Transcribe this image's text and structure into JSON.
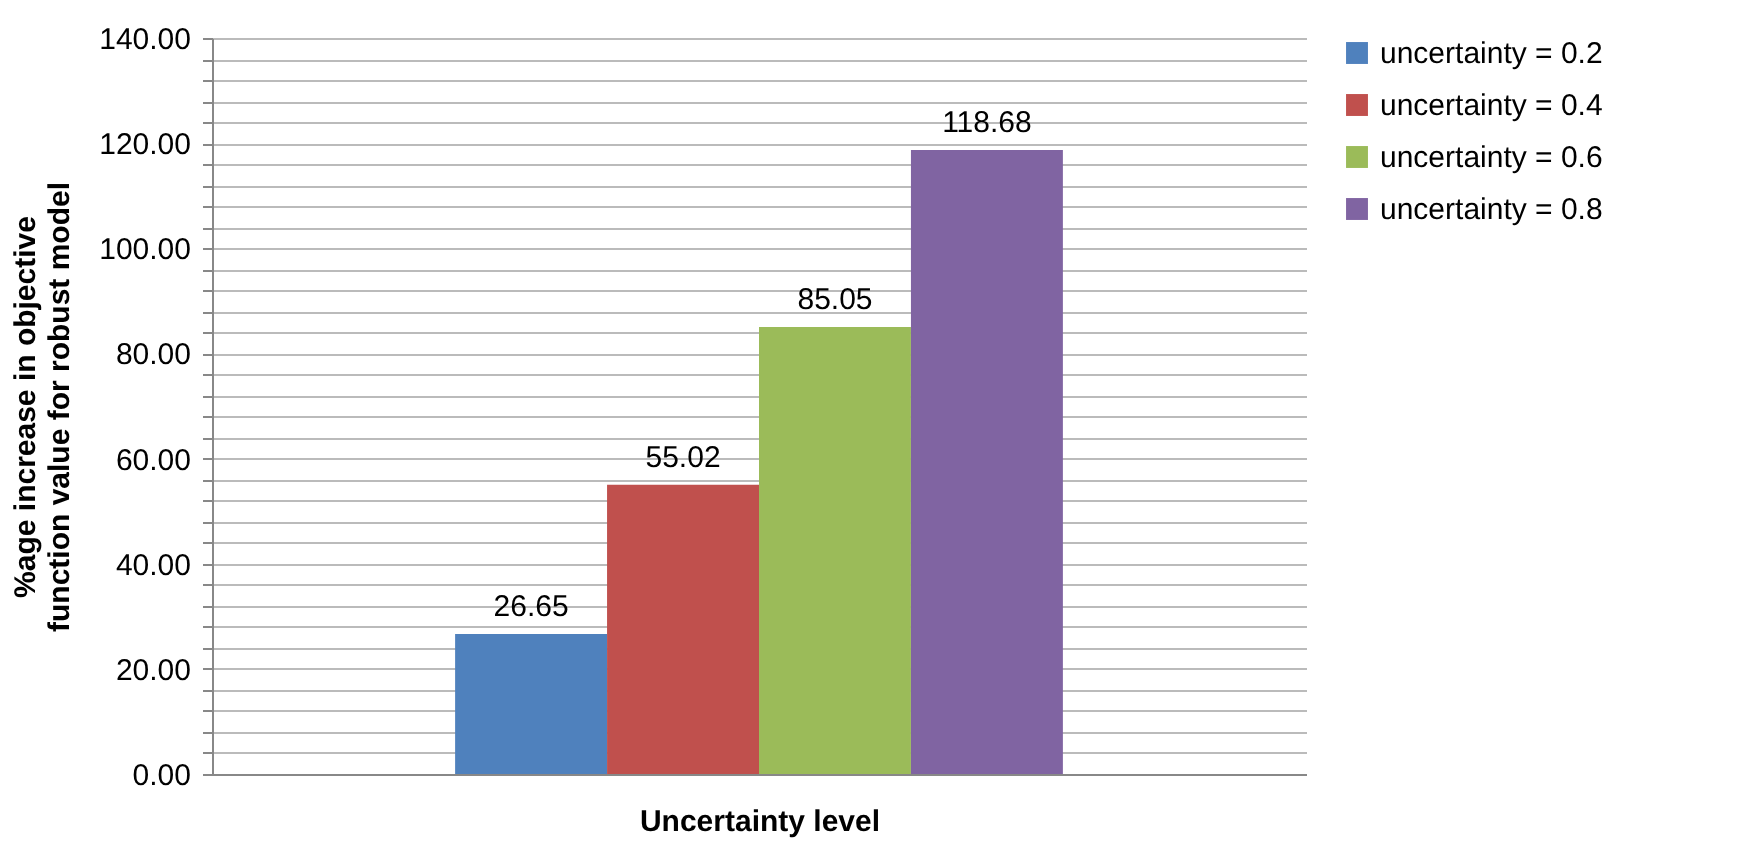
{
  "chart_data": {
    "type": "bar",
    "xlabel": "Uncertainty level",
    "ylabel": "%age increase in objective function value for robust model",
    "categories": [
      null
    ],
    "series": [
      {
        "name": "uncertainty = 0.2",
        "color": "#4f81bd",
        "values": [
          26.65
        ]
      },
      {
        "name": "uncertainty = 0.4",
        "color": "#c0504d",
        "values": [
          55.02
        ]
      },
      {
        "name": "uncertainty = 0.6",
        "color": "#9bbb59",
        "values": [
          85.05
        ]
      },
      {
        "name": "uncertainty = 0.8",
        "color": "#8064a2",
        "values": [
          118.68
        ]
      }
    ],
    "ylim": [
      0,
      140
    ],
    "yticks": [
      {
        "value": 0,
        "label": "0.00"
      },
      {
        "value": 4,
        "label": null
      },
      {
        "value": 8,
        "label": null
      },
      {
        "value": 12,
        "label": null
      },
      {
        "value": 16,
        "label": null
      },
      {
        "value": 20,
        "label": "20.00"
      },
      {
        "value": 24,
        "label": null
      },
      {
        "value": 28,
        "label": null
      },
      {
        "value": 32,
        "label": null
      },
      {
        "value": 36,
        "label": null
      },
      {
        "value": 40,
        "label": "40.00"
      },
      {
        "value": 44,
        "label": null
      },
      {
        "value": 48,
        "label": null
      },
      {
        "value": 52,
        "label": null
      },
      {
        "value": 56,
        "label": null
      },
      {
        "value": 60,
        "label": "60.00"
      },
      {
        "value": 64,
        "label": null
      },
      {
        "value": 68,
        "label": null
      },
      {
        "value": 72,
        "label": null
      },
      {
        "value": 76,
        "label": null
      },
      {
        "value": 80,
        "label": "80.00"
      },
      {
        "value": 84,
        "label": null
      },
      {
        "value": 88,
        "label": null
      },
      {
        "value": 92,
        "label": null
      },
      {
        "value": 96,
        "label": null
      },
      {
        "value": 100,
        "label": "100.00"
      },
      {
        "value": 104,
        "label": null
      },
      {
        "value": 108,
        "label": null
      },
      {
        "value": 112,
        "label": null
      },
      {
        "value": 116,
        "label": null
      },
      {
        "value": 120,
        "label": "120.00"
      },
      {
        "value": 124,
        "label": null
      },
      {
        "value": 128,
        "label": null
      },
      {
        "value": 132,
        "label": null
      },
      {
        "value": 136,
        "label": null
      },
      {
        "value": 140,
        "label": "140.00"
      }
    ],
    "grid": true,
    "legend": "right",
    "data_labels": true
  }
}
